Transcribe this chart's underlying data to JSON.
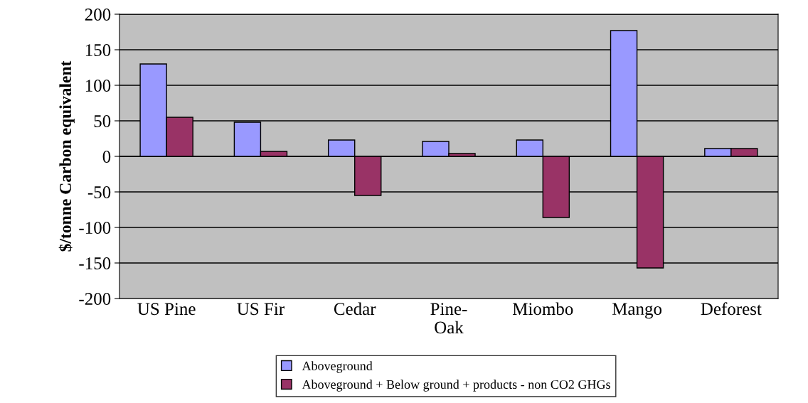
{
  "chart_data": {
    "type": "bar",
    "ylabel": "$/tonne Carbon equivalent",
    "categories": [
      "US Pine",
      "US Fir",
      "Cedar",
      "Pine-\nOak",
      "Miombo",
      "Mango",
      "Deforest"
    ],
    "series": [
      {
        "name": "Aboveground",
        "color": "#9999ff",
        "values": [
          130,
          48,
          23,
          21,
          23,
          177,
          11
        ]
      },
      {
        "name": "Aboveground + Below ground + products - non CO2 GHGs",
        "color": "#993366",
        "values": [
          55,
          7,
          -55,
          4,
          -86,
          -157,
          11
        ]
      }
    ],
    "ylim": [
      -200,
      200
    ],
    "yticks": [
      -200,
      -150,
      -100,
      -50,
      0,
      50,
      100,
      150,
      200
    ],
    "grid": "y",
    "legend": "bottom"
  }
}
